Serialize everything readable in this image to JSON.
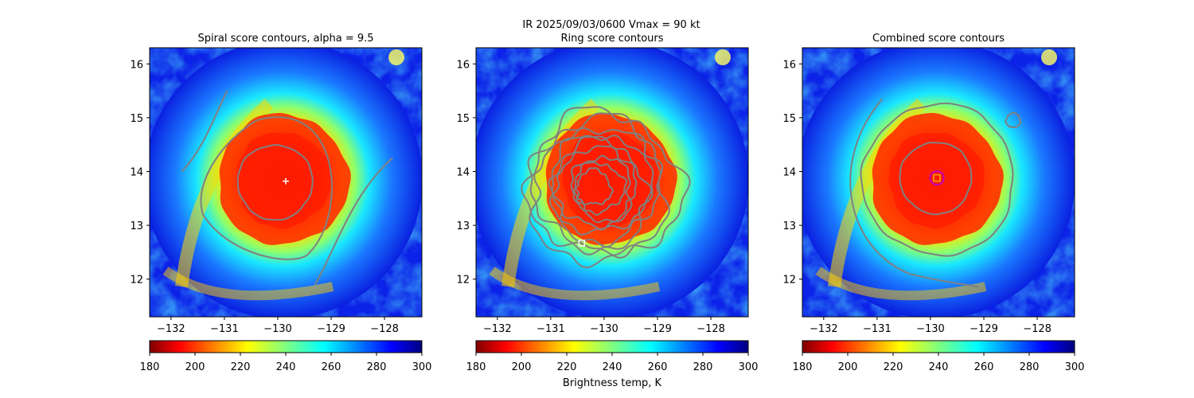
{
  "suptitle_line1": "IR  2025/09/03/0600    Vmax = 90 kt",
  "colorbar": {
    "label": "Brightness temp, K",
    "ticks": [
      "180",
      "200",
      "220",
      "240",
      "260",
      "280",
      "300"
    ],
    "range": [
      180,
      300
    ]
  },
  "chart_data": [
    {
      "type": "heatmap",
      "title": "Spiral score contours, alpha =  9.5",
      "xlim": [
        -132.4,
        -127.3
      ],
      "ylim": [
        11.3,
        16.3
      ],
      "x_ticks": [
        "−132",
        "−131",
        "−130",
        "−129",
        "−128"
      ],
      "y_ticks": [
        "12",
        "13",
        "14",
        "15",
        "16"
      ],
      "marker": {
        "symbol": "plus",
        "lon": -129.85,
        "lat": 13.82,
        "color": "#ffffff"
      }
    },
    {
      "type": "heatmap",
      "title": "Ring score contours",
      "xlim": [
        -132.4,
        -127.3
      ],
      "ylim": [
        11.3,
        16.3
      ],
      "x_ticks": [
        "−132",
        "−131",
        "−130",
        "−129",
        "−128"
      ],
      "y_ticks": [
        "12",
        "13",
        "14",
        "15",
        "16"
      ],
      "marker": {
        "symbol": "square",
        "lon": -130.42,
        "lat": 12.67,
        "color": "#ffffff"
      }
    },
    {
      "type": "heatmap",
      "title": "Combined score contours",
      "xlim": [
        -132.4,
        -127.3
      ],
      "ylim": [
        11.3,
        16.3
      ],
      "x_ticks": [
        "−132",
        "−131",
        "−130",
        "−129",
        "−128"
      ],
      "y_ticks": [
        "12",
        "13",
        "14",
        "15",
        "16"
      ],
      "marker": {
        "symbol": "square-circle",
        "lon": -129.88,
        "lat": 13.88,
        "color": "#ffa500",
        "ring_color": "#c000c0"
      }
    }
  ]
}
